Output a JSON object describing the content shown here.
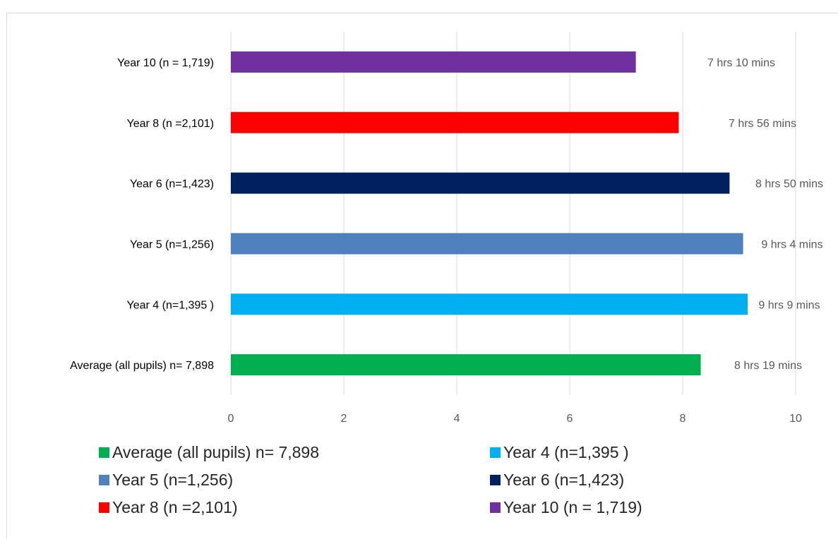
{
  "chart_data": {
    "type": "bar",
    "orientation": "horizontal",
    "categories": [
      "Average (all pupils) n= 7,898",
      "Year 4 (n=1,395 )",
      "Year 5 (n=1,256)",
      "Year 6 (n=1,423)",
      "Year 8 (n =2,101)",
      "Year 10 (n = 1,719)"
    ],
    "values": [
      8.32,
      9.15,
      9.07,
      8.83,
      7.93,
      7.17
    ],
    "data_labels": [
      "8 hrs 19 mins",
      "9 hrs 9 mins",
      "9 hrs 4 mins",
      "8 hrs 50 mins",
      "7 hrs 56 mins",
      "7 hrs 10 mins"
    ],
    "colors": [
      "#00b050",
      "#00b0f0",
      "#4f81bd",
      "#002060",
      "#ff0000",
      "#7030a0"
    ],
    "xlim": [
      0,
      10
    ],
    "xticks": [
      "0",
      "2",
      "4",
      "6",
      "8",
      "10"
    ],
    "grid": true,
    "legend_position": "bottom",
    "legend": [
      "Average (all pupils) n= 7,898",
      "Year 4 (n=1,395 )",
      "Year 5 (n=1,256)",
      "Year 6 (n=1,423)",
      "Year 8 (n =2,101)",
      "Year 10 (n = 1,719)"
    ]
  }
}
